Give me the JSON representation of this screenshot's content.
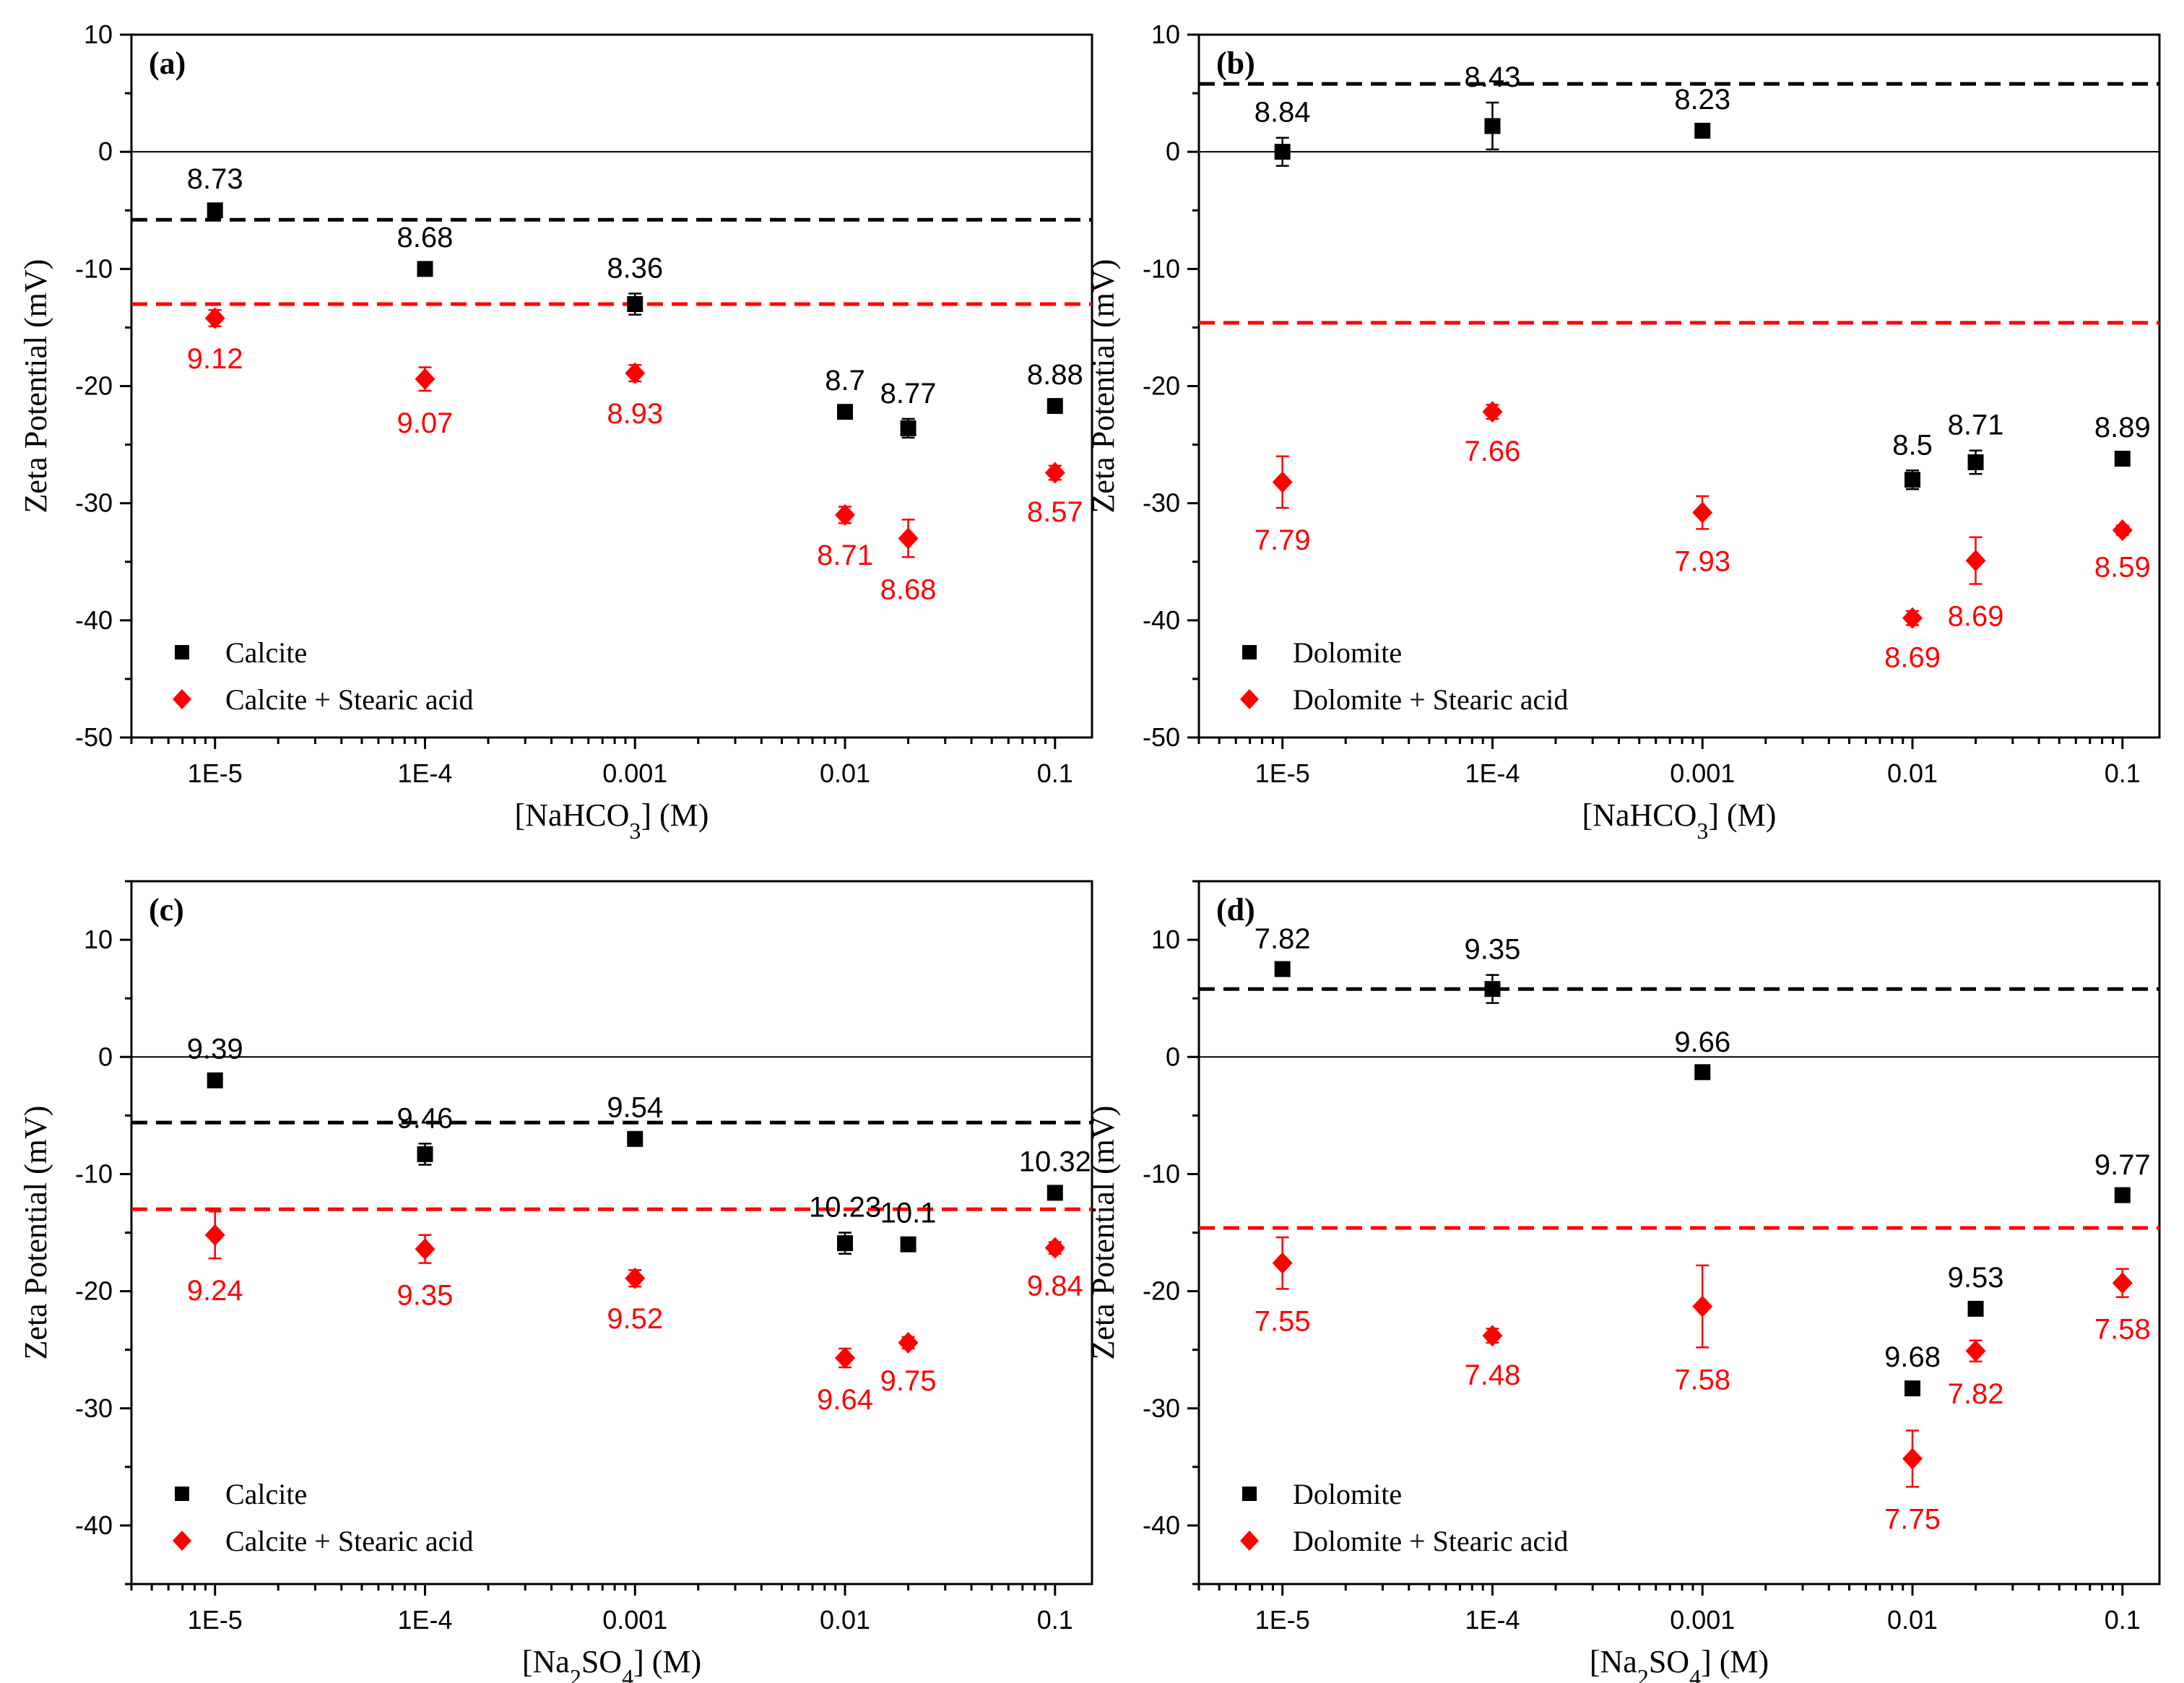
{
  "colors": {
    "black": "#000000",
    "red": "#ff0000"
  },
  "chart_data": [
    {
      "panel": "(a)",
      "type": "scatter",
      "xscale": "log",
      "xlim": [
        4e-06,
        0.15
      ],
      "ylim": [
        -50,
        10
      ],
      "yticks": [
        10,
        0,
        -10,
        -20,
        -30,
        -40,
        -50
      ],
      "xticks": [
        {
          "v": 1e-05,
          "label": "1E-5"
        },
        {
          "v": 0.0001,
          "label": "1E-4"
        },
        {
          "v": 0.001,
          "label": "0.001"
        },
        {
          "v": 0.01,
          "label": "0.01"
        },
        {
          "v": 0.1,
          "label": "0.1"
        }
      ],
      "ylabel": "Zeta Potential (mV)",
      "xlabel": {
        "pre": "[NaHCO",
        "sub": "3",
        "post": "] (M)"
      },
      "ref_lines": [
        {
          "y": -5.8,
          "color": "black",
          "dashed": true
        },
        {
          "y": -13,
          "color": "red",
          "dashed": true
        },
        {
          "y": 0,
          "color": "black",
          "dashed": false
        }
      ],
      "legend": [
        "Calcite",
        "Calcite + Stearic acid"
      ],
      "series": [
        {
          "name": "Calcite",
          "color": "black",
          "marker": "square",
          "label_pos": "above",
          "points": [
            {
              "x": 1e-05,
              "y": -5,
              "err": 0.5,
              "label": "8.73"
            },
            {
              "x": 0.0001,
              "y": -10,
              "err": 0.5,
              "label": "8.68"
            },
            {
              "x": 0.001,
              "y": -13,
              "err": 0.9,
              "label": "8.36"
            },
            {
              "x": 0.01,
              "y": -22.2,
              "err": 0.5,
              "label": "8.7"
            },
            {
              "x": 0.02,
              "y": -23.6,
              "err": 0.8,
              "label": "8.77"
            },
            {
              "x": 0.1,
              "y": -21.7,
              "err": 0.5,
              "label": "8.88"
            }
          ]
        },
        {
          "name": "Calcite + Stearic acid",
          "color": "red",
          "marker": "diamond",
          "label_pos": "below",
          "points": [
            {
              "x": 1e-05,
              "y": -14.2,
              "err": 0.7,
              "label": "9.12"
            },
            {
              "x": 0.0001,
              "y": -19.4,
              "err": 1.0,
              "label": "9.07"
            },
            {
              "x": 0.001,
              "y": -18.9,
              "err": 0.7,
              "label": "8.93"
            },
            {
              "x": 0.01,
              "y": -31,
              "err": 0.7,
              "label": "8.71"
            },
            {
              "x": 0.02,
              "y": -33,
              "err": 1.6,
              "label": "8.68"
            },
            {
              "x": 0.1,
              "y": -27.4,
              "err": 0.6,
              "label": "8.57"
            }
          ]
        }
      ]
    },
    {
      "panel": "(b)",
      "type": "scatter",
      "xscale": "log",
      "xlim": [
        4e-06,
        0.15
      ],
      "ylim": [
        -50,
        10
      ],
      "yticks": [
        10,
        0,
        -10,
        -20,
        -30,
        -40,
        -50
      ],
      "xticks": [
        {
          "v": 1e-05,
          "label": "1E-5"
        },
        {
          "v": 0.0001,
          "label": "1E-4"
        },
        {
          "v": 0.001,
          "label": "0.001"
        },
        {
          "v": 0.01,
          "label": "0.01"
        },
        {
          "v": 0.1,
          "label": "0.1"
        }
      ],
      "ylabel": "Zeta Potential (mV)",
      "xlabel": {
        "pre": "[NaHCO",
        "sub": "3",
        "post": "] (M)"
      },
      "ref_lines": [
        {
          "y": 5.8,
          "color": "black",
          "dashed": true
        },
        {
          "y": -14.6,
          "color": "red",
          "dashed": true
        },
        {
          "y": 0,
          "color": "black",
          "dashed": false
        }
      ],
      "legend": [
        "Dolomite",
        "Dolomite + Stearic acid"
      ],
      "series": [
        {
          "name": "Dolomite",
          "color": "black",
          "marker": "square",
          "label_pos": "above",
          "points": [
            {
              "x": 1e-05,
              "y": 0,
              "err": 1.2,
              "label": "8.84"
            },
            {
              "x": 0.0001,
              "y": 2.2,
              "err": 2.0,
              "label": "8.43"
            },
            {
              "x": 0.001,
              "y": 1.8,
              "err": 0.5,
              "label": "8.23"
            },
            {
              "x": 0.01,
              "y": -28,
              "err": 0.8,
              "label": "8.5"
            },
            {
              "x": 0.02,
              "y": -26.5,
              "err": 1.0,
              "label": "8.71"
            },
            {
              "x": 0.1,
              "y": -26.2,
              "err": 0.5,
              "label": "8.89"
            }
          ]
        },
        {
          "name": "Dolomite + Stearic acid",
          "color": "red",
          "marker": "diamond",
          "label_pos": "below",
          "points": [
            {
              "x": 1e-05,
              "y": -28.2,
              "err": 2.2,
              "label": "7.79"
            },
            {
              "x": 0.0001,
              "y": -22.2,
              "err": 0.6,
              "label": "7.66"
            },
            {
              "x": 0.001,
              "y": -30.8,
              "err": 1.4,
              "label": "7.93"
            },
            {
              "x": 0.01,
              "y": -39.8,
              "err": 0.6,
              "label": "8.69"
            },
            {
              "x": 0.02,
              "y": -34.9,
              "err": 2.0,
              "label": "8.69"
            },
            {
              "x": 0.1,
              "y": -32.3,
              "err": 0.4,
              "label": "8.59"
            }
          ]
        }
      ]
    },
    {
      "panel": "(c)",
      "type": "scatter",
      "xscale": "log",
      "xlim": [
        4e-06,
        0.15
      ],
      "ylim": [
        -45,
        15
      ],
      "yticks": [
        10,
        0,
        -10,
        -20,
        -30,
        -40
      ],
      "xticks": [
        {
          "v": 1e-05,
          "label": "1E-5"
        },
        {
          "v": 0.0001,
          "label": "1E-4"
        },
        {
          "v": 0.001,
          "label": "0.001"
        },
        {
          "v": 0.01,
          "label": "0.01"
        },
        {
          "v": 0.1,
          "label": "0.1"
        }
      ],
      "ylabel": "Zeta Potential (mV)",
      "xlabel": {
        "pre": "[Na",
        "sub": "2",
        "post": "SO",
        "sub2": "4",
        "post2": "] (M)"
      },
      "ref_lines": [
        {
          "y": -5.6,
          "color": "black",
          "dashed": true
        },
        {
          "y": -13,
          "color": "red",
          "dashed": true
        },
        {
          "y": 0,
          "color": "black",
          "dashed": false
        }
      ],
      "legend": [
        "Calcite",
        "Calcite + Stearic acid"
      ],
      "series": [
        {
          "name": "Calcite",
          "color": "black",
          "marker": "square",
          "label_pos": "above",
          "points": [
            {
              "x": 1e-05,
              "y": -2,
              "err": 0.5,
              "label": "9.39"
            },
            {
              "x": 0.0001,
              "y": -8.3,
              "err": 0.9,
              "label": "9.46"
            },
            {
              "x": 0.001,
              "y": -7,
              "err": 0.5,
              "label": "9.54"
            },
            {
              "x": 0.01,
              "y": -15.9,
              "err": 0.9,
              "label": "10.23"
            },
            {
              "x": 0.02,
              "y": -16,
              "err": 0.5,
              "label": "10.1"
            },
            {
              "x": 0.1,
              "y": -11.6,
              "err": 0.5,
              "label": "10.32"
            }
          ]
        },
        {
          "name": "Calcite + Stearic acid",
          "color": "red",
          "marker": "diamond",
          "label_pos": "below",
          "points": [
            {
              "x": 1e-05,
              "y": -15.2,
              "err": 2.0,
              "label": "9.24"
            },
            {
              "x": 0.0001,
              "y": -16.4,
              "err": 1.2,
              "label": "9.35"
            },
            {
              "x": 0.001,
              "y": -18.9,
              "err": 0.7,
              "label": "9.52"
            },
            {
              "x": 0.01,
              "y": -25.7,
              "err": 0.8,
              "label": "9.64"
            },
            {
              "x": 0.02,
              "y": -24.4,
              "err": 0.5,
              "label": "9.75"
            },
            {
              "x": 0.1,
              "y": -16.3,
              "err": 0.5,
              "label": "9.84"
            }
          ]
        }
      ]
    },
    {
      "panel": "(d)",
      "type": "scatter",
      "xscale": "log",
      "xlim": [
        4e-06,
        0.15
      ],
      "ylim": [
        -45,
        15
      ],
      "yticks": [
        10,
        0,
        -10,
        -20,
        -30,
        -40
      ],
      "xticks": [
        {
          "v": 1e-05,
          "label": "1E-5"
        },
        {
          "v": 0.0001,
          "label": "1E-4"
        },
        {
          "v": 0.001,
          "label": "0.001"
        },
        {
          "v": 0.01,
          "label": "0.01"
        },
        {
          "v": 0.1,
          "label": "0.1"
        }
      ],
      "ylabel": "Zeta Potential (mV)",
      "xlabel": {
        "pre": "[Na",
        "sub": "2",
        "post": "SO",
        "sub2": "4",
        "post2": "] (M)"
      },
      "ref_lines": [
        {
          "y": 5.8,
          "color": "black",
          "dashed": true
        },
        {
          "y": -14.6,
          "color": "red",
          "dashed": true
        },
        {
          "y": 0,
          "color": "black",
          "dashed": false
        }
      ],
      "legend": [
        "Dolomite",
        "Dolomite + Stearic acid"
      ],
      "series": [
        {
          "name": "Dolomite",
          "color": "black",
          "marker": "square",
          "label_pos": "above",
          "points": [
            {
              "x": 1e-05,
              "y": 7.5,
              "err": 0.4,
              "label": "7.82"
            },
            {
              "x": 0.0001,
              "y": 5.8,
              "err": 1.2,
              "label": "9.35"
            },
            {
              "x": 0.001,
              "y": -1.3,
              "err": 0.4,
              "label": "9.66"
            },
            {
              "x": 0.01,
              "y": -28.3,
              "err": 0.5,
              "label": "9.68"
            },
            {
              "x": 0.02,
              "y": -21.5,
              "err": 0.5,
              "label": "9.53"
            },
            {
              "x": 0.1,
              "y": -11.8,
              "err": 0.4,
              "label": "9.77"
            }
          ]
        },
        {
          "name": "Dolomite + Stearic acid",
          "color": "red",
          "marker": "diamond",
          "label_pos": "below",
          "points": [
            {
              "x": 1e-05,
              "y": -17.6,
              "err": 2.2,
              "label": "7.55"
            },
            {
              "x": 0.0001,
              "y": -23.8,
              "err": 0.6,
              "label": "7.48"
            },
            {
              "x": 0.001,
              "y": -21.3,
              "err": 3.5,
              "label": "7.58"
            },
            {
              "x": 0.01,
              "y": -34.3,
              "err": 2.4,
              "label": "7.75"
            },
            {
              "x": 0.02,
              "y": -25.1,
              "err": 0.9,
              "label": "7.82"
            },
            {
              "x": 0.1,
              "y": -19.3,
              "err": 1.2,
              "label": "7.58"
            }
          ]
        }
      ]
    }
  ]
}
